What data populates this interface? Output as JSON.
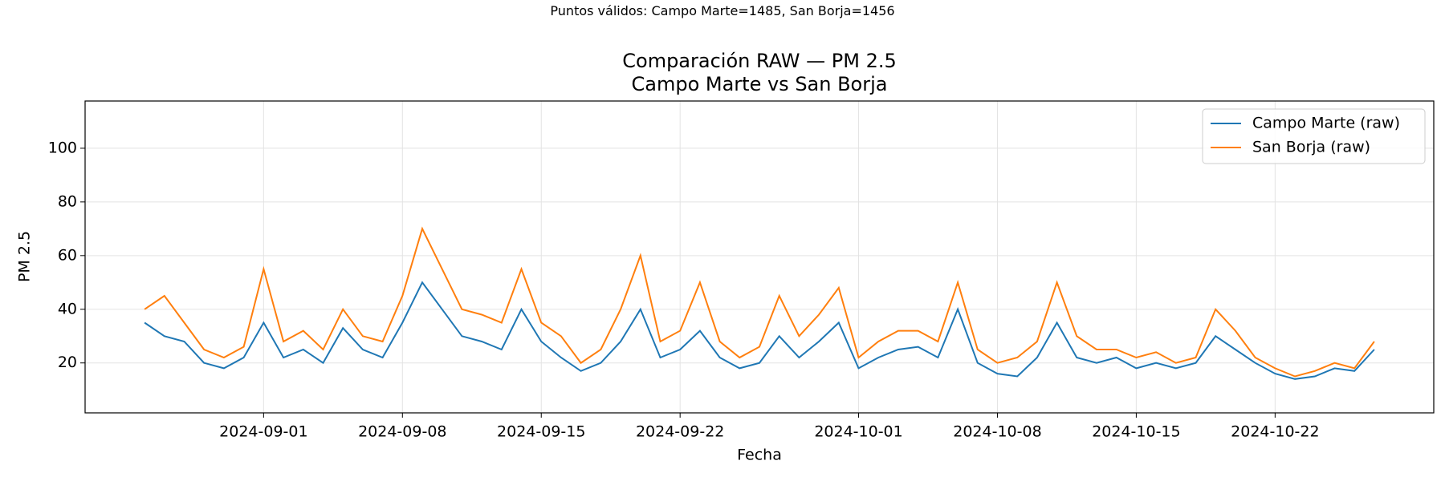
{
  "chart_data": {
    "type": "line",
    "annotation": "Puntos válidos: Campo Marte=1485, San Borja=1456",
    "title": "Comparación RAW — PM 2.5\nCampo Marte vs San Borja",
    "x_label": "Fecha",
    "y_label": "PM 2.5",
    "x": [
      "2024-08-26",
      "2024-08-27",
      "2024-08-28",
      "2024-08-29",
      "2024-08-30",
      "2024-08-31",
      "2024-09-01",
      "2024-09-02",
      "2024-09-03",
      "2024-09-04",
      "2024-09-05",
      "2024-09-06",
      "2024-09-07",
      "2024-09-08",
      "2024-09-09",
      "2024-09-10",
      "2024-09-11",
      "2024-09-12",
      "2024-09-13",
      "2024-09-14",
      "2024-09-15",
      "2024-09-16",
      "2024-09-17",
      "2024-09-18",
      "2024-09-19",
      "2024-09-20",
      "2024-09-21",
      "2024-09-22",
      "2024-09-23",
      "2024-09-24",
      "2024-09-25",
      "2024-09-26",
      "2024-09-27",
      "2024-09-28",
      "2024-09-29",
      "2024-09-30",
      "2024-10-01",
      "2024-10-02",
      "2024-10-03",
      "2024-10-04",
      "2024-10-05",
      "2024-10-06",
      "2024-10-07",
      "2024-10-08",
      "2024-10-09",
      "2024-10-10",
      "2024-10-11",
      "2024-10-12",
      "2024-10-13",
      "2024-10-14",
      "2024-10-15",
      "2024-10-16",
      "2024-10-17",
      "2024-10-18",
      "2024-10-19",
      "2024-10-20",
      "2024-10-21",
      "2024-10-22",
      "2024-10-23",
      "2024-10-24",
      "2024-10-25",
      "2024-10-26",
      "2024-10-27"
    ],
    "series": [
      {
        "name": "Campo Marte (raw)",
        "color": "#1f77b4",
        "values": [
          35,
          30,
          28,
          20,
          18,
          22,
          35,
          22,
          25,
          20,
          33,
          25,
          22,
          35,
          50,
          40,
          30,
          28,
          25,
          40,
          28,
          22,
          17,
          20,
          28,
          40,
          22,
          25,
          32,
          22,
          18,
          20,
          30,
          22,
          28,
          35,
          18,
          22,
          25,
          26,
          22,
          40,
          20,
          16,
          15,
          22,
          35,
          22,
          20,
          22,
          18,
          20,
          18,
          20,
          30,
          25,
          20,
          16,
          14,
          15,
          18,
          17,
          25
        ]
      },
      {
        "name": "San Borja (raw)",
        "color": "#ff7f0e",
        "values": [
          40,
          45,
          35,
          25,
          22,
          26,
          55,
          28,
          32,
          25,
          40,
          30,
          28,
          45,
          70,
          55,
          40,
          38,
          35,
          55,
          35,
          30,
          20,
          25,
          40,
          60,
          28,
          32,
          50,
          28,
          22,
          26,
          45,
          30,
          38,
          48,
          22,
          28,
          32,
          32,
          28,
          50,
          25,
          20,
          22,
          28,
          50,
          30,
          25,
          25,
          22,
          24,
          20,
          22,
          40,
          32,
          22,
          18,
          15,
          17,
          20,
          18,
          28
        ]
      }
    ],
    "xlim": [
      "2024-08-23",
      "2024-10-30"
    ],
    "xticks": [
      "2024-09-01",
      "2024-09-08",
      "2024-09-15",
      "2024-09-22",
      "2024-10-01",
      "2024-10-08",
      "2024-10-15",
      "2024-10-22"
    ],
    "ylim": [
      1.4,
      117.6
    ],
    "yticks": [
      20,
      40,
      60,
      80,
      100
    ],
    "grid": true,
    "legend": "upper right"
  }
}
